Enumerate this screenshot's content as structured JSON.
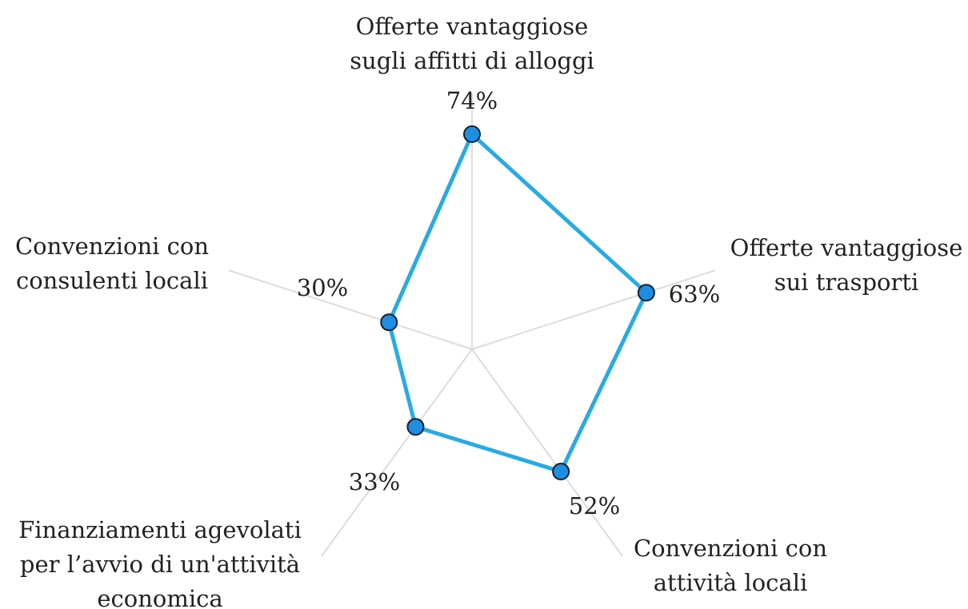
{
  "chart_data": {
    "type": "radar",
    "categories": [
      [
        "Offerte vantaggiose",
        "sugli affitti di alloggi"
      ],
      [
        "Offerte vantaggiose",
        "sui trasporti"
      ],
      [
        "Convenzioni con",
        "attività locali"
      ],
      [
        "Finanziamenti agevolati",
        "per l’avvio di un'attività",
        "economica"
      ],
      [
        "Convenzioni con",
        "consulenti locali"
      ]
    ],
    "values": [
      74,
      63,
      52,
      33,
      30
    ],
    "value_labels": [
      "74%",
      "63%",
      "52%",
      "33%",
      "30%"
    ],
    "rlim": [
      0,
      88
    ],
    "color": "#29abe2",
    "marker_color": "#1e8ee0"
  }
}
